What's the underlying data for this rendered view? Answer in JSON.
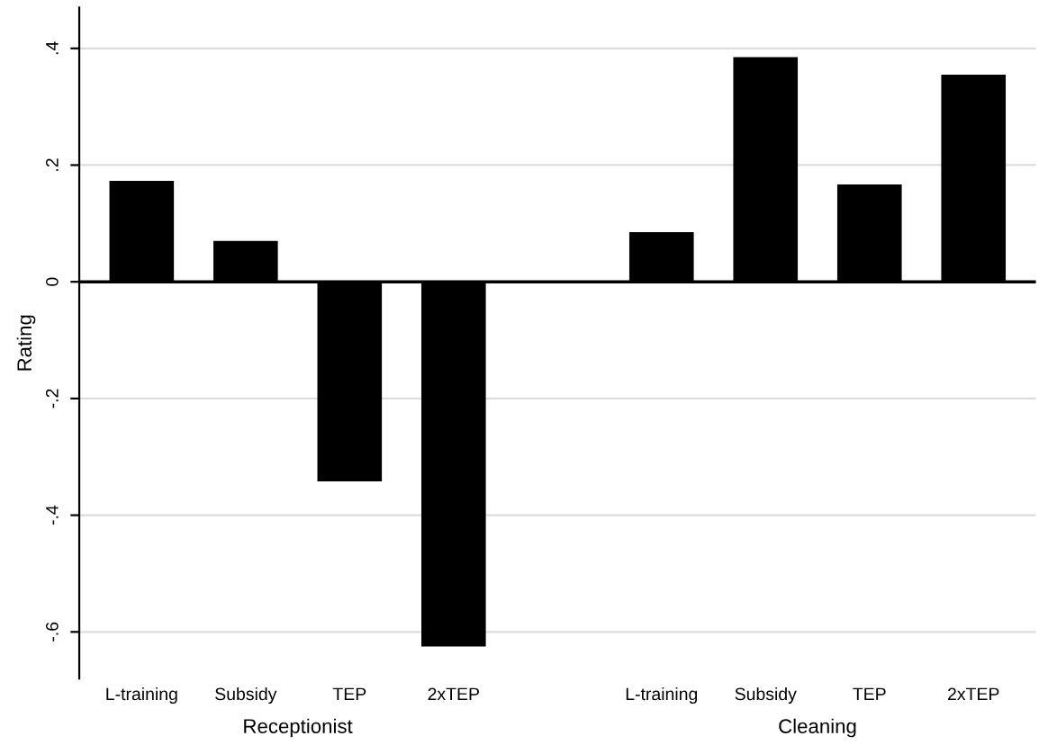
{
  "chart_data": {
    "type": "bar",
    "ylabel": "Rating",
    "categories": [
      "L-training",
      "Subsidy",
      "TEP",
      "2xTEP",
      null,
      "L-training",
      "Subsidy",
      "TEP",
      "2xTEP"
    ],
    "values": [
      0.173,
      0.07,
      -0.342,
      -0.625,
      null,
      0.085,
      0.385,
      0.167,
      0.355
    ],
    "color": "#000000",
    "ylim": [
      -0.68,
      0.47
    ],
    "yticks": [
      {
        "value": -0.6,
        "label": "-.6"
      },
      {
        "value": -0.4,
        "label": "-.4"
      },
      {
        "value": -0.2,
        "label": "-.2"
      },
      0,
      {
        "value": 0.2,
        "label": ".2"
      },
      {
        "value": 0.4,
        "label": ".4"
      }
    ],
    "grid": "y",
    "ref_lines": [
      {
        "axis": "y",
        "value": 0,
        "color": "#000000"
      }
    ],
    "annotations": [
      "Receptionist",
      "Cleaning"
    ]
  }
}
